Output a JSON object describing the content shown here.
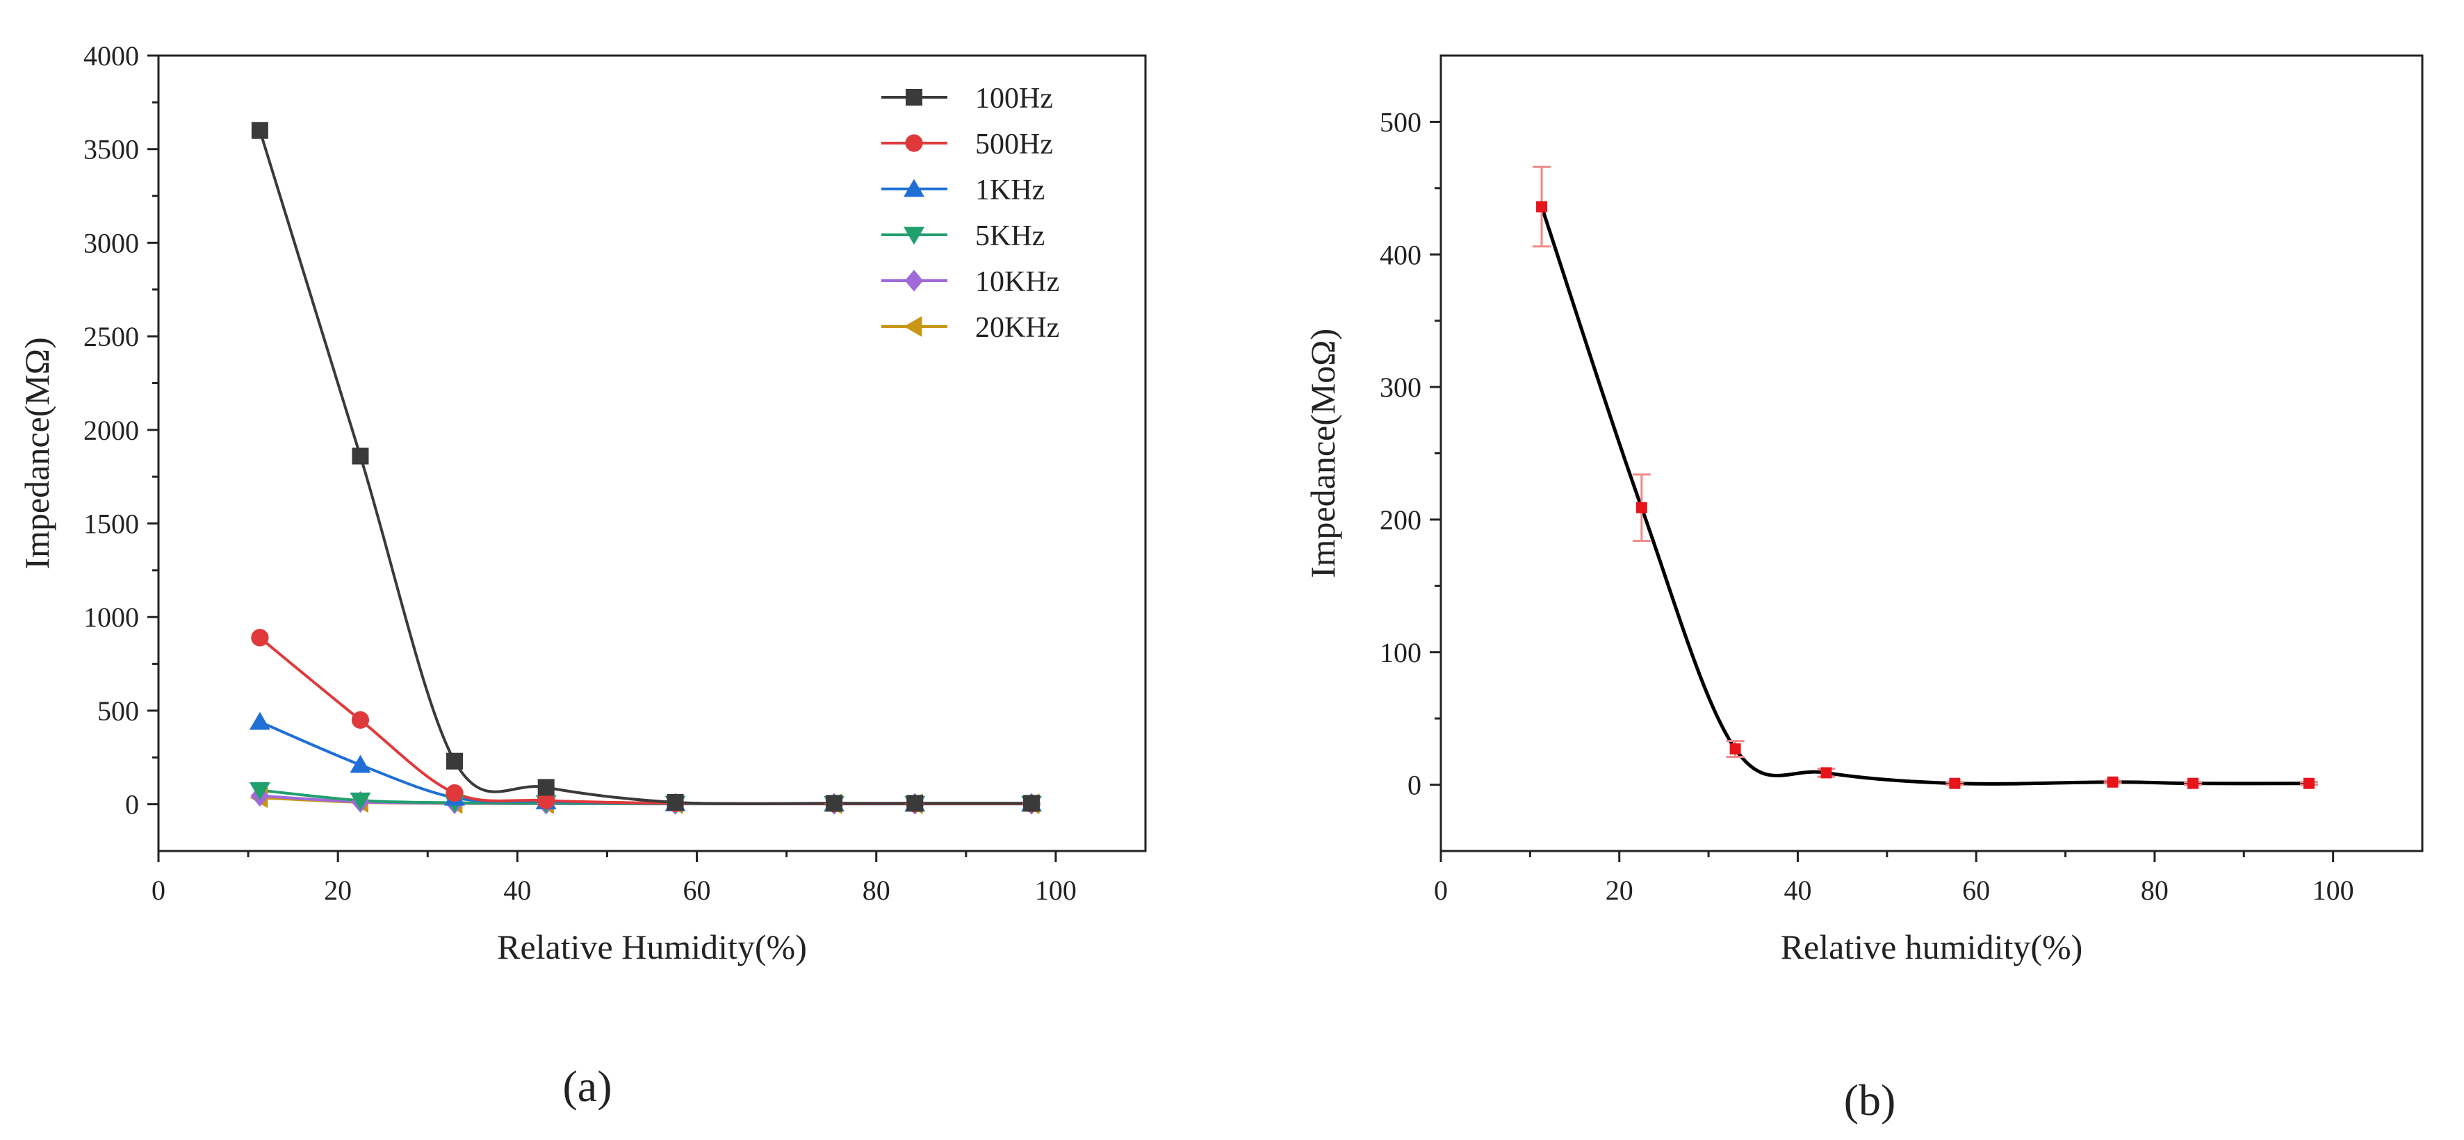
{
  "chart_data": [
    {
      "type": "line",
      "panel_label": "(a)",
      "title": "",
      "xlabel": "Relative Humidity(%)",
      "ylabel": "Impedance(MΩ)",
      "xlim": [
        0,
        110
      ],
      "ylim": [
        -250,
        4000
      ],
      "xticks": [
        0,
        20,
        40,
        60,
        80,
        100
      ],
      "yticks": [
        0,
        500,
        1000,
        1500,
        2000,
        2500,
        3000,
        3500,
        4000
      ],
      "grid": false,
      "legend_position": "top-right",
      "x": [
        11.3,
        22.5,
        33,
        43.2,
        57.6,
        75.3,
        84.3,
        97.3
      ],
      "series": [
        {
          "name": "100Hz",
          "color": "#3a3a3a",
          "marker": "square",
          "values": [
            3600,
            1860,
            230,
            90,
            10,
            5,
            5,
            5
          ]
        },
        {
          "name": "500Hz",
          "color": "#e0393b",
          "marker": "circle",
          "values": [
            890,
            450,
            60,
            20,
            5,
            3,
            3,
            3
          ]
        },
        {
          "name": "1KHz",
          "color": "#1f6fd6",
          "marker": "triangle-up",
          "values": [
            440,
            210,
            35,
            15,
            5,
            3,
            3,
            3
          ]
        },
        {
          "name": "5KHz",
          "color": "#21a06e",
          "marker": "triangle-down",
          "values": [
            75,
            20,
            8,
            5,
            3,
            2,
            2,
            2
          ]
        },
        {
          "name": "10KHz",
          "color": "#a06ad9",
          "marker": "diamond",
          "values": [
            45,
            12,
            5,
            3,
            2,
            2,
            2,
            2
          ]
        },
        {
          "name": "20KHz",
          "color": "#c89614",
          "marker": "triangle-left",
          "values": [
            35,
            10,
            4,
            3,
            2,
            2,
            2,
            2
          ]
        }
      ]
    },
    {
      "type": "line",
      "panel_label": "(b)",
      "title": "",
      "xlabel": "Relative humidity(%)",
      "ylabel": "Impedance(MoΩ)",
      "xlim": [
        0,
        110
      ],
      "ylim": [
        -50,
        550
      ],
      "xticks": [
        0,
        20,
        40,
        60,
        80,
        100
      ],
      "yticks": [
        0,
        100,
        200,
        300,
        400,
        500
      ],
      "grid": false,
      "line_color": "#000000",
      "marker_color": "#e8141b",
      "errorbar_color": "#f08a8a",
      "x": [
        11.3,
        22.5,
        33,
        43.2,
        57.6,
        75.3,
        84.3,
        97.3
      ],
      "series": [
        {
          "name": "Impedance",
          "values": [
            436,
            209,
            27,
            9,
            1,
            2,
            1,
            1
          ],
          "errors": [
            30,
            25,
            6,
            3,
            1,
            1,
            1,
            1
          ]
        }
      ]
    }
  ]
}
